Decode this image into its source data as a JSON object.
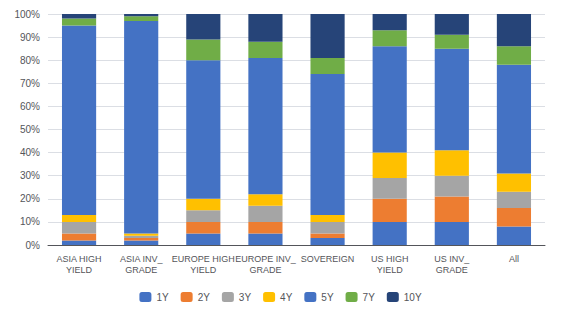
{
  "chart_data": {
    "type": "bar",
    "stacked": true,
    "categories": [
      "ASIA HIGH\nYIELD",
      "ASIA INV_\nGRADE",
      "EUROPE HIGH\nYIELD",
      "EUROPE INV_\nGRADE",
      "SOVEREIGN",
      "US HIGH\nYIELD",
      "US INV_\nGRADE",
      "All"
    ],
    "series": [
      {
        "name": "1Y",
        "color": "#4472C4",
        "values": [
          2,
          2,
          5,
          5,
          3,
          10,
          10,
          8
        ]
      },
      {
        "name": "2Y",
        "color": "#ED7D31",
        "values": [
          3,
          1,
          5,
          5,
          2,
          10,
          11,
          8
        ]
      },
      {
        "name": "3Y",
        "color": "#A5A5A5",
        "values": [
          5,
          1,
          5,
          7,
          5,
          9,
          9,
          7
        ]
      },
      {
        "name": "4Y",
        "color": "#FFC000",
        "values": [
          3,
          1,
          5,
          5,
          3,
          11,
          11,
          8
        ]
      },
      {
        "name": "5Y",
        "color": "#4472C4",
        "values": [
          82,
          92,
          60,
          59,
          61,
          46,
          44,
          47
        ]
      },
      {
        "name": "7Y",
        "color": "#70AD47",
        "values": [
          3,
          2,
          9,
          7,
          7,
          7,
          6,
          8
        ]
      },
      {
        "name": "10Y",
        "color": "#264478",
        "values": [
          2,
          1,
          11,
          12,
          19,
          7,
          9,
          14
        ]
      }
    ],
    "ylim": [
      0,
      100
    ],
    "yticks": [
      {
        "value": 0,
        "label": "0%"
      },
      {
        "value": 10,
        "label": "10%"
      },
      {
        "value": 20,
        "label": "20%"
      },
      {
        "value": 30,
        "label": "30%"
      },
      {
        "value": 40,
        "label": "40%"
      },
      {
        "value": 50,
        "label": "50%"
      },
      {
        "value": 60,
        "label": "60%"
      },
      {
        "value": 70,
        "label": "70%"
      },
      {
        "value": 80,
        "label": "80%"
      },
      {
        "value": 90,
        "label": "90%"
      },
      {
        "value": 100,
        "label": "100%"
      }
    ],
    "grid": true,
    "legend": "bottom"
  }
}
